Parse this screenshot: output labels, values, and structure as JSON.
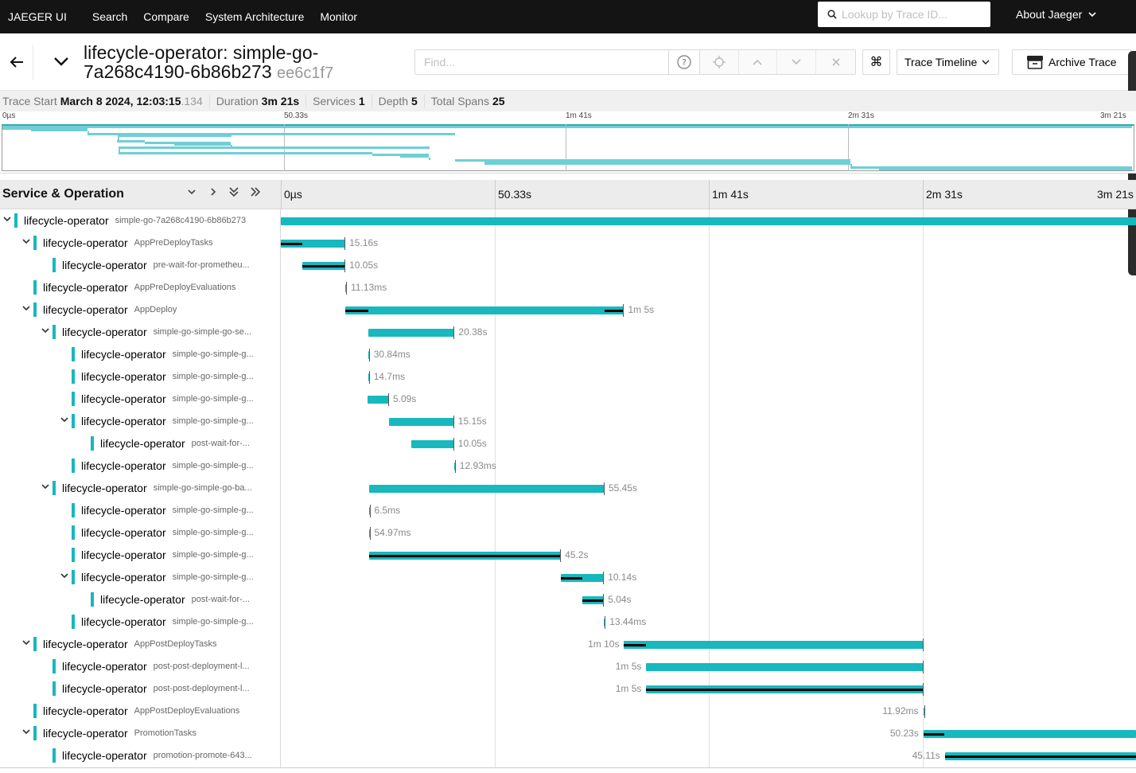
{
  "nav": {
    "brand": "JAEGER UI",
    "links": [
      "Search",
      "Compare",
      "System Architecture",
      "Monitor"
    ],
    "lookup_placeholder": "Lookup by Trace ID...",
    "about": "About Jaeger"
  },
  "trace": {
    "title": "lifecycle-operator: simple-go-7a268c4190-6b86b273",
    "trace_id_short": "ee6c1f7",
    "find_placeholder": "Find...",
    "view_mode": "Trace Timeline",
    "archive_label": "Archive Trace"
  },
  "meta": {
    "trace_start_label": "Trace Start",
    "trace_start_value": "March 8 2024, 12:03:15",
    "trace_start_ms": ".134",
    "duration_label": "Duration",
    "duration_value": "3m 21s",
    "services_label": "Services",
    "services_value": "1",
    "depth_label": "Depth",
    "depth_value": "5",
    "total_spans_label": "Total Spans",
    "total_spans_value": "25"
  },
  "timeline": {
    "column_title": "Service & Operation",
    "ticks": [
      "0µs",
      "50.33s",
      "1m 41s",
      "2m 31s",
      "3m 21s"
    ]
  },
  "spans": [
    {
      "service": "lifecycle-operator",
      "operation": "simple-go-7a268c4190-6b86b273",
      "depth": 0,
      "expanded": true,
      "start": 0.0,
      "end": 1.0,
      "self": [],
      "duration": ""
    },
    {
      "service": "lifecycle-operator",
      "operation": "AppPreDeployTasks",
      "depth": 1,
      "expanded": true,
      "start": 0.0,
      "end": 0.0754,
      "self": [
        [
          0.0,
          0.025
        ]
      ],
      "duration": "15.16s"
    },
    {
      "service": "lifecycle-operator",
      "operation": "pre-wait-for-prometheu...",
      "depth": 2,
      "expanded": null,
      "start": 0.025,
      "end": 0.0754,
      "self": [
        [
          0.025,
          0.0754
        ]
      ],
      "duration": "10.05s"
    },
    {
      "service": "lifecycle-operator",
      "operation": "AppPreDeployEvaluations",
      "depth": 1,
      "expanded": null,
      "start": 0.0754,
      "end": 0.0758,
      "self": [],
      "duration": "11.13ms"
    },
    {
      "service": "lifecycle-operator",
      "operation": "AppDeploy",
      "depth": 1,
      "expanded": true,
      "start": 0.0754,
      "end": 0.401,
      "self": [
        [
          0.0754,
          0.102
        ],
        [
          0.378,
          0.401
        ]
      ],
      "duration": "1m 5s"
    },
    {
      "service": "lifecycle-operator",
      "operation": "simple-go-simple-go-se...",
      "depth": 2,
      "expanded": true,
      "start": 0.102,
      "end": 0.203,
      "self": [],
      "duration": "20.38s"
    },
    {
      "service": "lifecycle-operator",
      "operation": "simple-go-simple-g...",
      "depth": 3,
      "expanded": null,
      "start": 0.102,
      "end": 0.1025,
      "self": [],
      "duration": "30.84ms"
    },
    {
      "service": "lifecycle-operator",
      "operation": "simple-go-simple-g...",
      "depth": 3,
      "expanded": null,
      "start": 0.102,
      "end": 0.1025,
      "self": [],
      "duration": "14.7ms"
    },
    {
      "service": "lifecycle-operator",
      "operation": "simple-go-simple-g...",
      "depth": 3,
      "expanded": null,
      "start": 0.1017,
      "end": 0.1264,
      "self": [],
      "duration": "5.09s"
    },
    {
      "service": "lifecycle-operator",
      "operation": "simple-go-simple-g...",
      "depth": 3,
      "expanded": true,
      "start": 0.1264,
      "end": 0.2024,
      "self": [],
      "duration": "15.15s"
    },
    {
      "service": "lifecycle-operator",
      "operation": "post-wait-for-...",
      "depth": 4,
      "expanded": null,
      "start": 0.152,
      "end": 0.2024,
      "self": [],
      "duration": "10.05s"
    },
    {
      "service": "lifecycle-operator",
      "operation": "simple-go-simple-g...",
      "depth": 3,
      "expanded": null,
      "start": 0.2024,
      "end": 0.2028,
      "self": [],
      "duration": "12.93ms"
    },
    {
      "service": "lifecycle-operator",
      "operation": "simple-go-simple-go-ba...",
      "depth": 2,
      "expanded": true,
      "start": 0.1027,
      "end": 0.3782,
      "self": [],
      "duration": "55.45s"
    },
    {
      "service": "lifecycle-operator",
      "operation": "simple-go-simple-g...",
      "depth": 3,
      "expanded": null,
      "start": 0.1027,
      "end": 0.103,
      "self": [],
      "duration": "6.5ms"
    },
    {
      "service": "lifecycle-operator",
      "operation": "simple-go-simple-g...",
      "depth": 3,
      "expanded": null,
      "start": 0.1027,
      "end": 0.103,
      "self": [],
      "duration": "54.97ms"
    },
    {
      "service": "lifecycle-operator",
      "operation": "simple-go-simple-g...",
      "depth": 3,
      "expanded": null,
      "start": 0.1027,
      "end": 0.3273,
      "self": [
        [
          0.1027,
          0.3273
        ]
      ],
      "duration": "45.2s"
    },
    {
      "service": "lifecycle-operator",
      "operation": "simple-go-simple-g...",
      "depth": 3,
      "expanded": true,
      "start": 0.3273,
      "end": 0.3775,
      "self": [
        [
          0.3273,
          0.352
        ]
      ],
      "duration": "10.14s"
    },
    {
      "service": "lifecycle-operator",
      "operation": "post-wait-for-...",
      "depth": 4,
      "expanded": null,
      "start": 0.352,
      "end": 0.3775,
      "self": [
        [
          0.352,
          0.3775
        ]
      ],
      "duration": "5.04s"
    },
    {
      "service": "lifecycle-operator",
      "operation": "simple-go-simple-g...",
      "depth": 3,
      "expanded": null,
      "start": 0.3775,
      "end": 0.378,
      "self": [],
      "duration": "13.44ms"
    },
    {
      "service": "lifecycle-operator",
      "operation": "AppPostDeployTasks",
      "depth": 1,
      "expanded": true,
      "start": 0.401,
      "end": 0.7505,
      "self": [
        [
          0.401,
          0.427
        ]
      ],
      "duration": "1m 10s"
    },
    {
      "service": "lifecycle-operator",
      "operation": "post-post-deployment-l...",
      "depth": 2,
      "expanded": null,
      "start": 0.427,
      "end": 0.7505,
      "self": [],
      "duration": "1m 5s"
    },
    {
      "service": "lifecycle-operator",
      "operation": "post-post-deployment-l...",
      "depth": 2,
      "expanded": null,
      "start": 0.427,
      "end": 0.7505,
      "self": [
        [
          0.427,
          0.7505
        ]
      ],
      "duration": "1m 5s"
    },
    {
      "service": "lifecycle-operator",
      "operation": "AppPostDeployEvaluations",
      "depth": 1,
      "expanded": null,
      "start": 0.7505,
      "end": 0.7508,
      "self": [],
      "duration": "11.92ms"
    },
    {
      "service": "lifecycle-operator",
      "operation": "PromotionTasks",
      "depth": 1,
      "expanded": true,
      "start": 0.7508,
      "end": 1.0,
      "self": [
        [
          0.7508,
          0.775
        ]
      ],
      "duration": "50.23s"
    },
    {
      "service": "lifecycle-operator",
      "operation": "promotion-promote-643...",
      "depth": 2,
      "expanded": null,
      "start": 0.7758,
      "end": 1.0,
      "self": [
        [
          0.7758,
          1.0
        ]
      ],
      "duration": "45.11s"
    }
  ],
  "colors": {
    "service": "#17b8be",
    "topnav": "#141414"
  }
}
